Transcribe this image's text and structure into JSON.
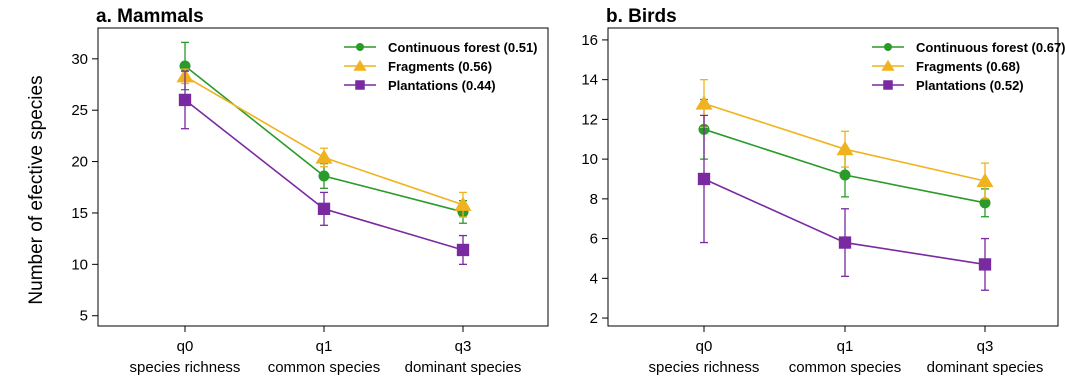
{
  "ylabel": "Number of efective species",
  "colors": {
    "Continuous forest": "#2a9a2a",
    "Fragments": "#f0b21e",
    "Plantations": "#7a2aa0"
  },
  "chart_data": [
    {
      "type": "line",
      "title": "a. Mammals",
      "categories": [
        "q0",
        "q1",
        "q3"
      ],
      "category_sublabels": [
        "species richness",
        "common species",
        "dominant species"
      ],
      "ylim": [
        4,
        33
      ],
      "yticks": [
        5,
        10,
        15,
        20,
        25,
        30
      ],
      "grid": false,
      "legend_position": "top-right",
      "series": [
        {
          "name": "Continuous forest",
          "legend": "Continuous forest (0.51)",
          "marker": "circle",
          "values": [
            29.3,
            18.6,
            15.1
          ],
          "err_low": [
            27.0,
            17.4,
            14.0
          ],
          "err_high": [
            31.6,
            19.8,
            16.2
          ]
        },
        {
          "name": "Fragments",
          "legend": "Fragments (0.56)",
          "marker": "triangle",
          "values": [
            28.3,
            20.4,
            15.8
          ],
          "err_low": [
            27.6,
            19.5,
            14.6
          ],
          "err_high": [
            29.0,
            21.3,
            17.0
          ]
        },
        {
          "name": "Plantations",
          "legend": "Plantations (0.44)",
          "marker": "square",
          "values": [
            26.0,
            15.4,
            11.4
          ],
          "err_low": [
            23.2,
            13.8,
            10.0
          ],
          "err_high": [
            28.8,
            17.0,
            12.8
          ]
        }
      ]
    },
    {
      "type": "line",
      "title": "b. Birds",
      "categories": [
        "q0",
        "q1",
        "q3"
      ],
      "category_sublabels": [
        "species richness",
        "common species",
        "dominant species"
      ],
      "ylim": [
        1.6,
        16.6
      ],
      "yticks": [
        2,
        4,
        6,
        8,
        10,
        12,
        14,
        16
      ],
      "grid": false,
      "legend_position": "top-right",
      "series": [
        {
          "name": "Continuous forest",
          "legend": "Continuous forest (0.67)",
          "marker": "circle",
          "values": [
            11.5,
            9.2,
            7.8
          ],
          "err_low": [
            10.0,
            8.1,
            7.1
          ],
          "err_high": [
            13.0,
            10.3,
            8.5
          ]
        },
        {
          "name": "Fragments",
          "legend": "Fragments (0.68)",
          "marker": "triangle",
          "values": [
            12.8,
            10.5,
            8.9
          ],
          "err_low": [
            11.6,
            9.6,
            8.0
          ],
          "err_high": [
            14.0,
            11.4,
            9.8
          ]
        },
        {
          "name": "Plantations",
          "legend": "Plantations (0.52)",
          "marker": "square",
          "values": [
            9.0,
            5.8,
            4.7
          ],
          "err_low": [
            5.8,
            4.1,
            3.4
          ],
          "err_high": [
            12.2,
            7.5,
            6.0
          ]
        }
      ]
    }
  ]
}
